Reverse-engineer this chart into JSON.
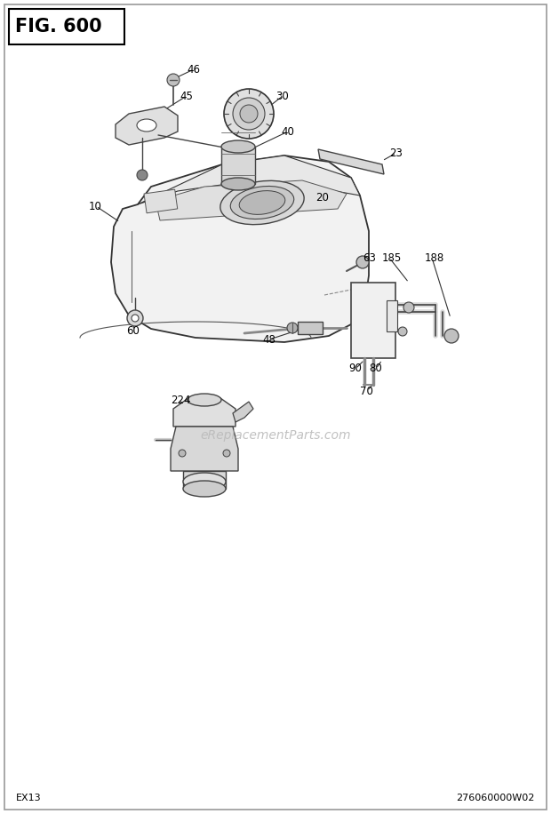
{
  "fig_label": "FIG. 600",
  "bottom_left": "EX13",
  "bottom_right": "276060000W02",
  "watermark": "eReplacementParts.com",
  "bg_color": "#ffffff",
  "line_color": "#333333",
  "light_gray": "#cccccc",
  "mid_gray": "#aaaaaa",
  "tank_fill": "#f0f0f0",
  "tank_edge": "#333333"
}
